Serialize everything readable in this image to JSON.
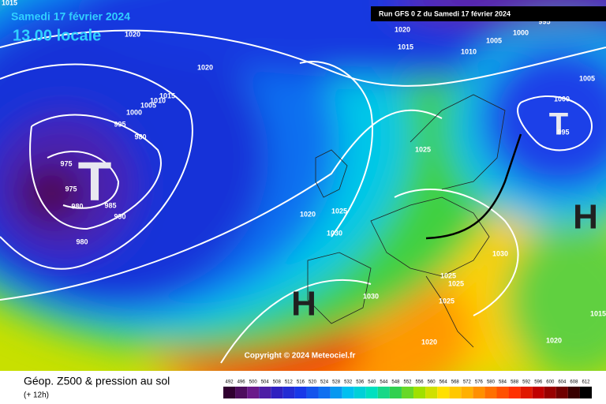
{
  "header": {
    "date": "Samedi 17 février 2024",
    "time": "13.00 locale",
    "run": "Run GFS 0 Z du Samedi 17 février 2024"
  },
  "map": {
    "centers": [
      "T",
      "T",
      "H",
      "H"
    ],
    "isobar_labels": [
      1015,
      1020,
      1020,
      1015,
      1010,
      1005,
      1000,
      995,
      980,
      975,
      975,
      980,
      985,
      990,
      980,
      1020,
      1025,
      1030,
      1025,
      1030,
      1020,
      1015,
      1010,
      1005,
      1000,
      1005,
      1000,
      995,
      1025,
      1025,
      1025,
      1020,
      1020,
      1030,
      1015,
      995
    ],
    "copyright": "Copyright © 2024 Meteociel.fr"
  },
  "footer": {
    "title": "Géop. Z500 & pression au sol",
    "step": "(+ 12h)",
    "scale": [
      492,
      496,
      500,
      504,
      508,
      512,
      516,
      520,
      524,
      528,
      532,
      536,
      540,
      544,
      548,
      552,
      556,
      560,
      564,
      568,
      572,
      576,
      580,
      584,
      588,
      592,
      596,
      600,
      604,
      608,
      612
    ]
  }
}
